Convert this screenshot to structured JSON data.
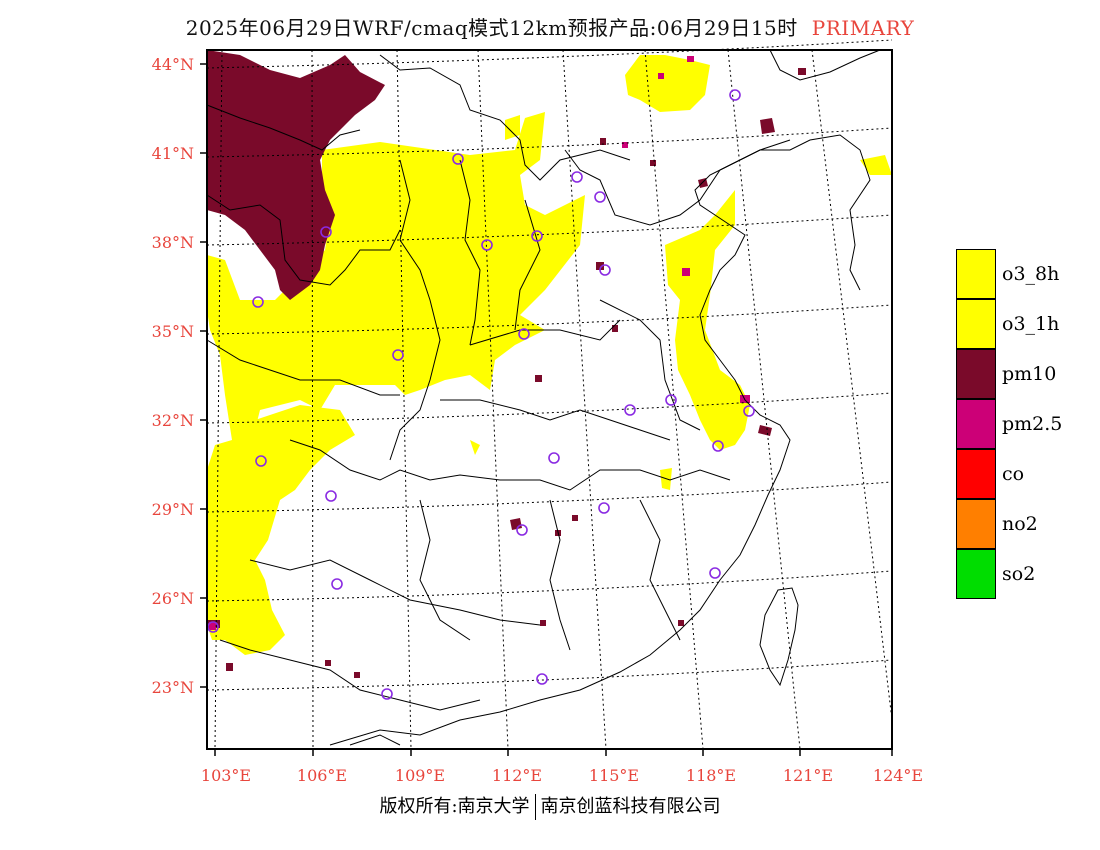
{
  "header": {
    "title": "2025年06月29日WRF/cmaq模式12km预报产品:06月29日15时",
    "tag": "PRIMARY"
  },
  "map": {
    "lat_ticks": [
      "44°N",
      "41°N",
      "38°N",
      "35°N",
      "32°N",
      "29°N",
      "26°N",
      "23°N"
    ],
    "lon_ticks": [
      "103°E",
      "106°E",
      "109°E",
      "112°E",
      "115°E",
      "118°E",
      "121°E",
      "124°E"
    ],
    "colors": {
      "o3_8h": "#ffff00",
      "pm10": "#7a0a2a",
      "pm25": "#cc0077",
      "station_marker": "#8a2be2"
    }
  },
  "legend": {
    "items": [
      {
        "label": "o3_8h",
        "color": "#ffff00"
      },
      {
        "label": "o3_1h",
        "color": "#ffff00"
      },
      {
        "label": "pm10",
        "color": "#7a0a2a"
      },
      {
        "label": "pm2.5",
        "color": "#cc0077"
      },
      {
        "label": "co",
        "color": "#ff0000"
      },
      {
        "label": "no2",
        "color": "#ff7f00"
      },
      {
        "label": "so2",
        "color": "#00dd00"
      }
    ]
  },
  "footer": {
    "left": "版权所有:南京大学",
    "right": "南京创蓝科技有限公司"
  }
}
